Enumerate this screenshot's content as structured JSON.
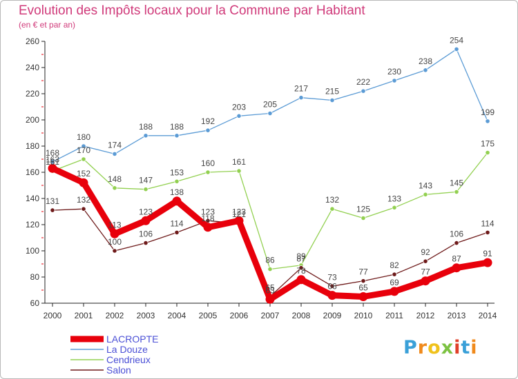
{
  "title": "Evolution des Impôts locaux pour la Commune par Habitant",
  "subtitle": "(en € et par an)",
  "logo": {
    "text": "Proxiti",
    "letters": [
      "P",
      "r",
      "o",
      "x",
      "i",
      "t",
      "i"
    ],
    "colors": [
      "#3aa0d8",
      "#f08a1c",
      "#f0c21c",
      "#7cc242",
      "#e0402a",
      "#3aa0d8",
      "#f08a1c"
    ]
  },
  "chart_data": {
    "type": "line",
    "title": "Evolution des Impôts locaux pour la Commune par Habitant",
    "subtitle": "(en € et par an)",
    "xlabel": "",
    "ylabel": "",
    "x": [
      "2000",
      "2001",
      "2002",
      "2003",
      "2004",
      "2005",
      "2006",
      "2007",
      "2008",
      "2009",
      "2010",
      "2011",
      "2012",
      "2013",
      "2014"
    ],
    "ylim": [
      60,
      260
    ],
    "yticks": [
      60,
      80,
      100,
      120,
      140,
      160,
      180,
      200,
      220,
      240,
      260
    ],
    "grid": false,
    "legend_position": "bottom-left",
    "series": [
      {
        "name": "LACROPTE",
        "color": "#e8000b",
        "values": [
          163,
          152,
          113,
          123,
          138,
          118,
          123,
          63,
          78,
          66,
          65,
          69,
          77,
          87,
          91
        ]
      },
      {
        "name": "La Douze",
        "color": "#5b9bd5",
        "values": [
          168,
          180,
          174,
          188,
          188,
          192,
          203,
          205,
          217,
          215,
          222,
          230,
          238,
          254,
          199
        ]
      },
      {
        "name": "Cendrieux",
        "color": "#92d050",
        "values": [
          161,
          170,
          148,
          147,
          153,
          160,
          161,
          86,
          89,
          132,
          125,
          133,
          143,
          145,
          175
        ]
      },
      {
        "name": "Salon",
        "color": "#6e1a1a",
        "values": [
          131,
          132,
          100,
          106,
          114,
          123,
          121,
          65,
          87,
          73,
          77,
          82,
          92,
          106,
          114
        ]
      }
    ]
  }
}
